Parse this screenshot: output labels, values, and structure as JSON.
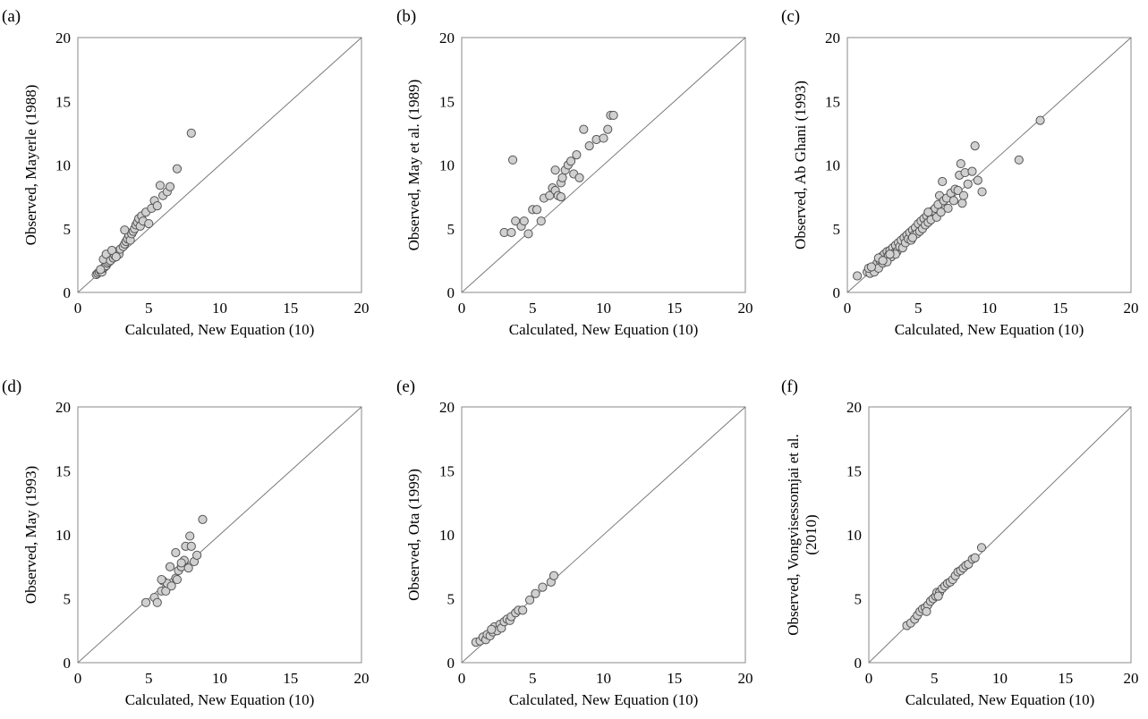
{
  "chart_data": [
    {
      "type": "scatter",
      "letter": "(a)",
      "xlabel": "Calculated, New Equation (10)",
      "ylabel": [
        "Observed, Mayerle (1988)"
      ],
      "xlim": [
        0,
        20
      ],
      "ylim": [
        0,
        20
      ],
      "ticks": [
        "0",
        "5",
        "10",
        "15",
        "20"
      ],
      "reference_line": "y = x",
      "points": [
        [
          1.3,
          1.4
        ],
        [
          1.4,
          1.5
        ],
        [
          1.5,
          1.6
        ],
        [
          1.6,
          1.7
        ],
        [
          1.7,
          1.6
        ],
        [
          1.8,
          1.9
        ],
        [
          1.9,
          2.0
        ],
        [
          2.0,
          2.1
        ],
        [
          2.1,
          2.3
        ],
        [
          2.2,
          2.4
        ],
        [
          1.8,
          2.6
        ],
        [
          2.0,
          3.0
        ],
        [
          2.3,
          2.5
        ],
        [
          2.5,
          2.7
        ],
        [
          2.6,
          2.9
        ],
        [
          2.8,
          3.2
        ],
        [
          2.9,
          3.0
        ],
        [
          3.0,
          3.4
        ],
        [
          3.2,
          3.6
        ],
        [
          3.3,
          3.8
        ],
        [
          3.4,
          4.0
        ],
        [
          3.5,
          4.2
        ],
        [
          3.6,
          4.5
        ],
        [
          3.7,
          4.1
        ],
        [
          3.8,
          4.6
        ],
        [
          3.9,
          4.8
        ],
        [
          4.0,
          5.0
        ],
        [
          4.1,
          5.3
        ],
        [
          4.2,
          5.5
        ],
        [
          4.3,
          5.8
        ],
        [
          4.4,
          5.2
        ],
        [
          4.5,
          6.0
        ],
        [
          4.6,
          5.6
        ],
        [
          4.8,
          6.3
        ],
        [
          5.0,
          5.4
        ],
        [
          5.2,
          6.6
        ],
        [
          5.4,
          7.2
        ],
        [
          5.6,
          6.8
        ],
        [
          5.8,
          8.4
        ],
        [
          6.0,
          7.6
        ],
        [
          6.3,
          7.9
        ],
        [
          6.5,
          8.3
        ],
        [
          7.0,
          9.7
        ],
        [
          8.0,
          12.5
        ],
        [
          3.3,
          4.9
        ],
        [
          2.4,
          3.3
        ],
        [
          1.6,
          1.8
        ],
        [
          2.7,
          2.8
        ]
      ]
    },
    {
      "type": "scatter",
      "letter": "(b)",
      "xlabel": "Calculated, New Equation (10)",
      "ylabel": [
        "Observed, May et al. (1989)"
      ],
      "xlim": [
        0,
        20
      ],
      "ylim": [
        0,
        20
      ],
      "ticks": [
        "0",
        "5",
        "10",
        "15",
        "20"
      ],
      "reference_line": "y = x",
      "points": [
        [
          3.0,
          4.7
        ],
        [
          3.5,
          4.7
        ],
        [
          3.8,
          5.6
        ],
        [
          3.6,
          10.4
        ],
        [
          4.2,
          5.2
        ],
        [
          4.4,
          5.6
        ],
        [
          4.7,
          4.6
        ],
        [
          5.0,
          6.5
        ],
        [
          5.3,
          6.5
        ],
        [
          5.6,
          5.6
        ],
        [
          5.8,
          7.4
        ],
        [
          6.2,
          7.6
        ],
        [
          6.4,
          8.2
        ],
        [
          6.6,
          8.0
        ],
        [
          6.8,
          7.6
        ],
        [
          7.0,
          8.6
        ],
        [
          7.1,
          9.0
        ],
        [
          7.3,
          9.6
        ],
        [
          7.5,
          10.0
        ],
        [
          7.7,
          10.3
        ],
        [
          7.9,
          9.3
        ],
        [
          8.1,
          10.8
        ],
        [
          8.3,
          9.0
        ],
        [
          8.6,
          12.8
        ],
        [
          9.0,
          11.5
        ],
        [
          9.5,
          12.0
        ],
        [
          10.0,
          12.1
        ],
        [
          10.3,
          12.8
        ],
        [
          10.5,
          13.9
        ],
        [
          10.7,
          13.9
        ],
        [
          6.6,
          9.6
        ],
        [
          7.0,
          7.5
        ]
      ]
    },
    {
      "type": "scatter",
      "letter": "(c)",
      "xlabel": "Calculated, New Equation (10)",
      "ylabel": [
        "Observed, Ab Ghani (1993)"
      ],
      "xlim": [
        0,
        20
      ],
      "ylim": [
        0,
        20
      ],
      "ticks": [
        "0",
        "5",
        "10",
        "15",
        "20"
      ],
      "reference_line": "y = x",
      "points": [
        [
          0.7,
          1.3
        ],
        [
          1.4,
          1.6
        ],
        [
          1.6,
          1.5
        ],
        [
          1.8,
          1.9
        ],
        [
          1.9,
          1.6
        ],
        [
          2.0,
          2.1
        ],
        [
          2.1,
          2.3
        ],
        [
          2.2,
          1.9
        ],
        [
          2.3,
          2.5
        ],
        [
          2.4,
          2.8
        ],
        [
          2.5,
          2.3
        ],
        [
          2.6,
          3.0
        ],
        [
          2.7,
          2.6
        ],
        [
          2.8,
          3.2
        ],
        [
          2.9,
          2.9
        ],
        [
          3.0,
          3.3
        ],
        [
          3.1,
          2.8
        ],
        [
          3.2,
          3.5
        ],
        [
          3.3,
          3.1
        ],
        [
          3.4,
          3.7
        ],
        [
          3.5,
          3.2
        ],
        [
          3.6,
          3.9
        ],
        [
          3.7,
          3.6
        ],
        [
          3.8,
          4.1
        ],
        [
          3.9,
          3.5
        ],
        [
          4.0,
          4.3
        ],
        [
          4.1,
          3.9
        ],
        [
          4.2,
          4.5
        ],
        [
          4.3,
          4.2
        ],
        [
          4.4,
          4.7
        ],
        [
          4.5,
          4.1
        ],
        [
          4.6,
          4.9
        ],
        [
          4.7,
          4.5
        ],
        [
          4.8,
          5.1
        ],
        [
          4.9,
          4.6
        ],
        [
          5.0,
          5.4
        ],
        [
          5.1,
          4.8
        ],
        [
          5.2,
          5.6
        ],
        [
          5.3,
          5.0
        ],
        [
          5.4,
          5.8
        ],
        [
          5.5,
          5.3
        ],
        [
          5.6,
          6.0
        ],
        [
          5.7,
          5.5
        ],
        [
          5.8,
          6.2
        ],
        [
          5.9,
          5.7
        ],
        [
          6.0,
          6.4
        ],
        [
          6.2,
          6.6
        ],
        [
          6.3,
          5.9
        ],
        [
          6.4,
          6.9
        ],
        [
          6.5,
          7.6
        ],
        [
          6.6,
          6.3
        ],
        [
          6.8,
          7.2
        ],
        [
          7.0,
          7.4
        ],
        [
          7.1,
          6.6
        ],
        [
          7.3,
          7.8
        ],
        [
          7.5,
          7.2
        ],
        [
          7.6,
          8.1
        ],
        [
          7.8,
          8.0
        ],
        [
          7.9,
          9.2
        ],
        [
          8.0,
          10.1
        ],
        [
          8.1,
          7.0
        ],
        [
          8.2,
          7.6
        ],
        [
          8.3,
          9.4
        ],
        [
          8.5,
          8.5
        ],
        [
          8.8,
          9.5
        ],
        [
          9.0,
          11.5
        ],
        [
          9.2,
          8.8
        ],
        [
          9.5,
          7.9
        ],
        [
          12.1,
          10.4
        ],
        [
          13.6,
          13.5
        ],
        [
          1.5,
          1.9
        ],
        [
          2.2,
          2.7
        ],
        [
          2.8,
          2.4
        ],
        [
          3.4,
          3.0
        ],
        [
          4.6,
          4.3
        ],
        [
          5.7,
          6.3
        ],
        [
          6.7,
          8.7
        ],
        [
          1.7,
          2.0
        ],
        [
          2.5,
          2.5
        ],
        [
          3.0,
          3.0
        ]
      ]
    },
    {
      "type": "scatter",
      "letter": "(d)",
      "xlabel": "Calculated, New Equation (10)",
      "ylabel": [
        "Observed, May (1993)"
      ],
      "xlim": [
        0,
        20
      ],
      "ylim": [
        0,
        20
      ],
      "ticks": [
        "0",
        "5",
        "10",
        "15",
        "20"
      ],
      "reference_line": "y = x",
      "points": [
        [
          4.8,
          4.7
        ],
        [
          5.4,
          5.1
        ],
        [
          5.6,
          4.7
        ],
        [
          5.9,
          5.6
        ],
        [
          6.0,
          6.4
        ],
        [
          6.2,
          5.6
        ],
        [
          6.3,
          6.2
        ],
        [
          6.5,
          7.5
        ],
        [
          6.6,
          6.0
        ],
        [
          6.9,
          6.6
        ],
        [
          7.0,
          6.5
        ],
        [
          7.1,
          7.2
        ],
        [
          7.3,
          7.5
        ],
        [
          7.5,
          8.0
        ],
        [
          7.6,
          9.1
        ],
        [
          7.8,
          7.4
        ],
        [
          7.9,
          9.9
        ],
        [
          8.0,
          9.1
        ],
        [
          8.2,
          7.9
        ],
        [
          8.4,
          8.4
        ],
        [
          8.8,
          11.2
        ],
        [
          6.9,
          8.6
        ],
        [
          5.9,
          6.5
        ],
        [
          7.3,
          7.8
        ]
      ]
    },
    {
      "type": "scatter",
      "letter": "(e)",
      "xlabel": "Calculated, New Equation (10)",
      "ylabel": [
        "Observed, Ota (1999)"
      ],
      "xlim": [
        0,
        20
      ],
      "ylim": [
        0,
        20
      ],
      "ticks": [
        "0",
        "5",
        "10",
        "15",
        "20"
      ],
      "reference_line": "y = x",
      "points": [
        [
          1.0,
          1.6
        ],
        [
          1.3,
          1.7
        ],
        [
          1.5,
          2.0
        ],
        [
          1.7,
          1.8
        ],
        [
          1.8,
          2.2
        ],
        [
          2.0,
          2.1
        ],
        [
          2.2,
          2.4
        ],
        [
          2.3,
          2.8
        ],
        [
          2.5,
          2.5
        ],
        [
          2.7,
          3.0
        ],
        [
          2.8,
          2.7
        ],
        [
          3.0,
          3.2
        ],
        [
          3.2,
          3.4
        ],
        [
          3.4,
          3.3
        ],
        [
          3.5,
          3.6
        ],
        [
          3.8,
          3.9
        ],
        [
          4.0,
          4.1
        ],
        [
          4.3,
          4.1
        ],
        [
          4.8,
          4.9
        ],
        [
          5.2,
          5.4
        ],
        [
          5.7,
          5.9
        ],
        [
          6.3,
          6.3
        ],
        [
          6.5,
          6.8
        ],
        [
          2.1,
          2.6
        ]
      ]
    },
    {
      "type": "scatter",
      "letter": "(f)",
      "xlabel": "Calculated, New Equation (10)",
      "ylabel": [
        "Observed, Vongvisessomjai et al.",
        "(2010)"
      ],
      "xlim": [
        0,
        20
      ],
      "ylim": [
        0,
        20
      ],
      "ticks": [
        "0",
        "5",
        "10",
        "15",
        "20"
      ],
      "reference_line": "y = x",
      "points": [
        [
          2.9,
          2.9
        ],
        [
          3.2,
          3.1
        ],
        [
          3.5,
          3.4
        ],
        [
          3.7,
          3.7
        ],
        [
          3.9,
          4.0
        ],
        [
          4.1,
          4.2
        ],
        [
          4.3,
          4.3
        ],
        [
          4.5,
          4.5
        ],
        [
          4.7,
          4.8
        ],
        [
          4.9,
          5.0
        ],
        [
          5.1,
          5.2
        ],
        [
          5.2,
          5.5
        ],
        [
          5.4,
          5.5
        ],
        [
          5.6,
          5.8
        ],
        [
          5.8,
          6.0
        ],
        [
          6.0,
          6.2
        ],
        [
          6.2,
          6.3
        ],
        [
          6.4,
          6.5
        ],
        [
          6.6,
          6.8
        ],
        [
          6.8,
          7.1
        ],
        [
          7.0,
          7.2
        ],
        [
          7.2,
          7.4
        ],
        [
          7.4,
          7.6
        ],
        [
          7.6,
          7.7
        ],
        [
          7.9,
          8.1
        ],
        [
          8.1,
          8.2
        ],
        [
          8.6,
          9.0
        ],
        [
          4.4,
          4.0
        ],
        [
          5.3,
          5.2
        ]
      ]
    }
  ]
}
